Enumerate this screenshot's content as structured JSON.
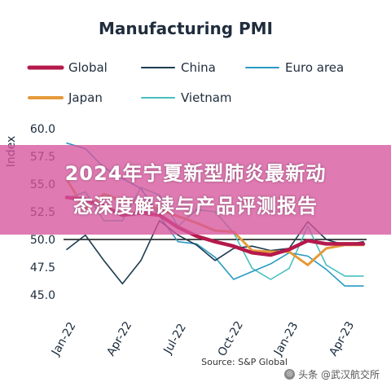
{
  "chart_data": {
    "type": "line",
    "title": "Manufacturing PMI",
    "ylabel": "Index",
    "xlabel": "",
    "ylim": [
      45.0,
      60.0
    ],
    "yticks": [
      45.0,
      47.5,
      50.0,
      52.5,
      55.0,
      57.5,
      60.0
    ],
    "ytick_labels": [
      "45.0",
      "47.5",
      "50.0",
      "52.5",
      "55.0",
      "57.5",
      "60.0"
    ],
    "x": [
      "Jan-22",
      "Feb-22",
      "Mar-22",
      "Apr-22",
      "May-22",
      "Jun-22",
      "Jul-22",
      "Aug-22",
      "Sep-22",
      "Oct-22",
      "Nov-22",
      "Dec-22",
      "Jan-23",
      "Feb-23",
      "Mar-23",
      "Apr-23",
      "May-23"
    ],
    "xtick_labels": [
      "Jan-22",
      "Apr-22",
      "Jul-22",
      "Oct-22",
      "Jan-23",
      "Apr-23"
    ],
    "xtick_indices": [
      0,
      3,
      6,
      9,
      12,
      15
    ],
    "reference_line": 50.0,
    "legend_position": "top",
    "series": [
      {
        "name": "Global",
        "color": "#b5194b",
        "values": [
          53.8,
          53.6,
          53.0,
          52.2,
          52.4,
          52.2,
          51.1,
          50.3,
          49.8,
          49.4,
          48.8,
          48.6,
          49.1,
          49.9,
          49.6,
          49.6,
          49.6
        ]
      },
      {
        "name": "China",
        "color": "#1d3b4f",
        "values": [
          49.1,
          50.4,
          48.1,
          46.0,
          48.1,
          51.7,
          50.4,
          49.5,
          48.1,
          49.2,
          49.4,
          49.0,
          49.2,
          51.6,
          50.0,
          49.5,
          49.8
        ]
      },
      {
        "name": "Euro area",
        "color": "#2a9ac4",
        "values": [
          58.7,
          58.2,
          56.5,
          55.5,
          54.6,
          52.1,
          49.8,
          49.6,
          48.4,
          46.4,
          47.1,
          47.8,
          48.8,
          48.5,
          47.3,
          45.8,
          45.8
        ]
      },
      {
        "name": "Japan",
        "color": "#e59a3a",
        "values": [
          55.4,
          52.7,
          54.1,
          53.5,
          53.3,
          52.7,
          52.1,
          51.5,
          50.8,
          50.7,
          49.0,
          48.9,
          48.9,
          47.7,
          49.2,
          49.5,
          49.5
        ]
      },
      {
        "name": "Vietnam",
        "color": "#49bfbf",
        "values": [
          53.7,
          54.3,
          51.7,
          51.7,
          54.7,
          54.0,
          51.2,
          52.7,
          52.5,
          50.6,
          47.4,
          46.4,
          47.4,
          51.2,
          47.7,
          46.7,
          46.7
        ]
      }
    ],
    "source": "Source: S&P Global"
  },
  "banner": {
    "line1": "2024年宁夏新型肺炎最新动",
    "line2": "态深度解读与产品评测报告"
  },
  "watermark": {
    "text": "头条 @武汉航交所"
  }
}
